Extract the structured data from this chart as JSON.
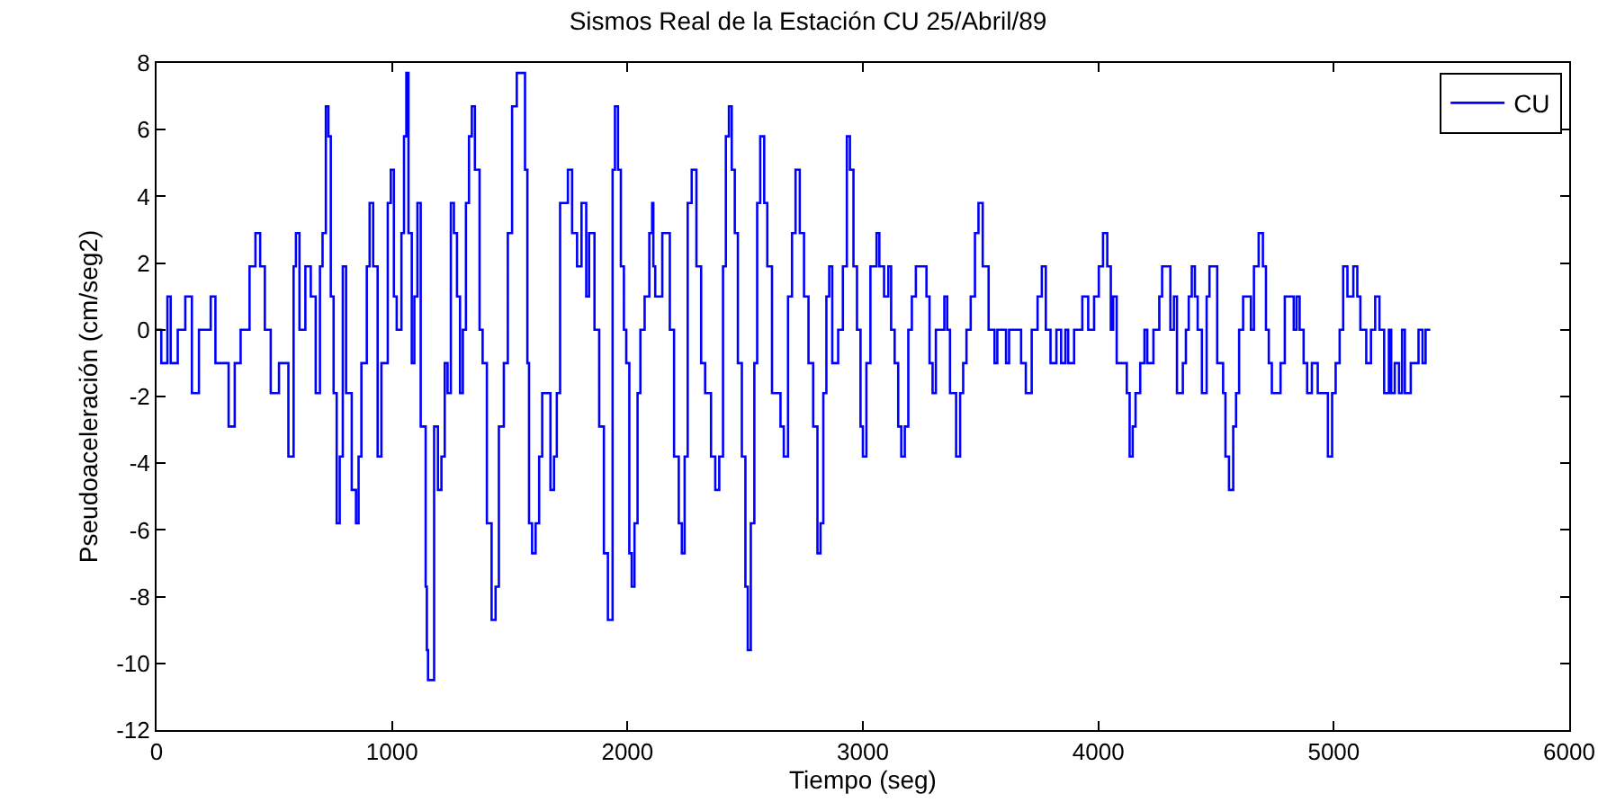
{
  "chart_data": {
    "type": "step",
    "title": "Sismos Real de la Estación CU 25/Abril/89",
    "xlabel": "Tiempo (seg)",
    "ylabel": "Pseudoaceleración (cm/seg2)",
    "xlim": [
      0,
      6000
    ],
    "xticks": [
      0,
      1000,
      2000,
      3000,
      4000,
      5000,
      6000
    ],
    "ylim": [
      -12,
      8
    ],
    "yticks": [
      -12,
      -10,
      -8,
      -6,
      -4,
      -2,
      0,
      2,
      4,
      6,
      8
    ],
    "grid": false,
    "legend": "top right",
    "series": [
      {
        "name": "CU",
        "color": "#0000ff",
        "x": [
          0,
          20,
          46,
          60,
          90,
          122,
          150,
          180,
          230,
          250,
          306,
          332,
          357,
          395,
          420,
          440,
          460,
          485,
          520,
          560,
          582,
          592,
          607,
          632,
          655,
          676,
          694,
          705,
          719,
          730,
          740,
          752,
          765,
          778,
          791,
          805,
          829,
          847,
          858,
          870,
          893,
          905,
          920,
          939,
          955,
          970,
          982,
          995,
          1008,
          1020,
          1040,
          1051,
          1061,
          1070,
          1084,
          1095,
          1108,
          1122,
          1143,
          1148,
          1153,
          1179,
          1195,
          1210,
          1224,
          1236,
          1250,
          1263,
          1276,
          1289,
          1301,
          1314,
          1327,
          1339,
          1352,
          1372,
          1385,
          1403,
          1423,
          1440,
          1454,
          1475,
          1492,
          1510,
          1530,
          1551,
          1565,
          1575,
          1582,
          1595,
          1610,
          1625,
          1638,
          1660,
          1673,
          1688,
          1700,
          1714,
          1747,
          1765,
          1786,
          1805,
          1825,
          1837,
          1860,
          1880,
          1900,
          1917,
          1937,
          1947,
          1960,
          1972,
          1985,
          1995,
          2008,
          2018,
          2030,
          2043,
          2055,
          2073,
          2093,
          2105,
          2110,
          2118,
          2148,
          2170,
          2180,
          2198,
          2218,
          2231,
          2243,
          2256,
          2273,
          2293,
          2313,
          2330,
          2355,
          2373,
          2390,
          2406,
          2418,
          2431,
          2443,
          2456,
          2469,
          2486,
          2501,
          2511,
          2524,
          2539,
          2551,
          2564,
          2581,
          2594,
          2614,
          2650,
          2664,
          2682,
          2699,
          2714,
          2732,
          2750,
          2769,
          2789,
          2807,
          2820,
          2832,
          2845,
          2857,
          2870,
          2895,
          2915,
          2932,
          2945,
          2960,
          2975,
          2990,
          3000,
          3015,
          3032,
          3058,
          3070,
          3090,
          3108,
          3120,
          3135,
          3150,
          3163,
          3178,
          3193,
          3208,
          3225,
          3260,
          3270,
          3283,
          3296,
          3310,
          3346,
          3358,
          3370,
          3396,
          3413,
          3426,
          3440,
          3458,
          3476,
          3491,
          3509,
          3534,
          3559,
          3571,
          3608,
          3621,
          3645,
          3672,
          3692,
          3717,
          3742,
          3760,
          3777,
          3797,
          3822,
          3842,
          3860,
          3872,
          3897,
          3932,
          3957,
          3982,
          4002,
          4020,
          4038,
          4053,
          4063,
          4078,
          4121,
          4133,
          4146,
          4158,
          4178,
          4196,
          4208,
          4234,
          4259,
          4271,
          4289,
          4306,
          4321,
          4334,
          4359,
          4372,
          4384,
          4397,
          4410,
          4422,
          4440,
          4460,
          4472,
          4490,
          4505,
          4530,
          4540,
          4555,
          4573,
          4585,
          4598,
          4615,
          4648,
          4661,
          4681,
          4699,
          4712,
          4724,
          4737,
          4774,
          4792,
          4807,
          4830,
          4842,
          4855,
          4872,
          4887,
          4907,
          4932,
          4957,
          4975,
          4993,
          5008,
          5025,
          5040,
          5058,
          5083,
          5100,
          5113,
          5138,
          5158,
          5176,
          5194,
          5214,
          5234,
          5244,
          5259,
          5277,
          5290,
          5302,
          5327,
          5340,
          5360,
          5377,
          5390,
          5410
        ],
        "values": [
          0,
          -1,
          1,
          -1,
          0,
          1,
          -1.9,
          0,
          1,
          -1,
          -2.9,
          -1,
          0,
          1.9,
          2.9,
          1.9,
          0,
          -1.9,
          -1,
          -3.8,
          1.9,
          2.9,
          0,
          1.9,
          1,
          -1.9,
          1.9,
          2.9,
          6.7,
          5.8,
          1,
          -1.9,
          -5.8,
          -3.8,
          1.9,
          -1.9,
          -4.8,
          -5.8,
          -3.8,
          -1,
          1.9,
          3.8,
          1.9,
          -3.8,
          -1,
          -1,
          3.8,
          4.8,
          1,
          0,
          2.9,
          5.8,
          7.7,
          2.9,
          -1,
          1,
          3.8,
          -2.9,
          -7.7,
          -9.6,
          -10.5,
          -2.9,
          -4.8,
          -3.8,
          -1,
          -1.9,
          3.8,
          2.9,
          1,
          -1.9,
          0,
          3.8,
          5.8,
          6.7,
          4.8,
          0,
          -1,
          -5.8,
          -8.7,
          -7.7,
          -2.9,
          -1,
          2.9,
          6.7,
          7.7,
          7.7,
          4.8,
          -1,
          -5.8,
          -6.7,
          -5.8,
          -3.8,
          -1.9,
          -1.9,
          -4.8,
          -3.8,
          -1.9,
          3.8,
          4.8,
          2.9,
          1.9,
          3.8,
          1,
          2.9,
          0,
          -2.9,
          -6.7,
          -8.7,
          4.8,
          6.7,
          4.8,
          1.9,
          0,
          -1,
          -6.7,
          -7.7,
          -5.8,
          -1.9,
          0,
          1,
          2.9,
          3.8,
          1.9,
          1,
          2.9,
          2.9,
          0,
          -3.8,
          -5.8,
          -6.7,
          -3.8,
          3.8,
          4.8,
          1.9,
          -1,
          -1.9,
          -3.8,
          -4.8,
          -3.8,
          1.9,
          5.8,
          6.7,
          4.8,
          2.9,
          -1,
          -3.8,
          -7.7,
          -9.6,
          -5.8,
          -1,
          3.8,
          5.8,
          3.8,
          1.9,
          -1.9,
          -2.9,
          -3.8,
          1,
          2.9,
          4.8,
          2.9,
          1,
          -1,
          -2.9,
          -6.7,
          -5.8,
          -1.9,
          1,
          1.9,
          -1,
          0,
          1.9,
          5.8,
          4.8,
          1.9,
          0,
          -2.9,
          -3.8,
          -1,
          1.9,
          2.9,
          1.9,
          1,
          1.9,
          0,
          -1,
          -2.9,
          -3.8,
          -2.9,
          0,
          1,
          1.9,
          1.9,
          1,
          -1,
          -1.9,
          0,
          1,
          0,
          -1.9,
          -3.8,
          -1.9,
          -1,
          0,
          1,
          2.9,
          3.8,
          1.9,
          0,
          -1,
          0,
          -1,
          0,
          0,
          -1,
          -1.9,
          0,
          1,
          1.9,
          0,
          -1,
          0,
          -1,
          0,
          -1,
          0,
          1,
          0,
          1,
          1.9,
          2.9,
          1.9,
          0,
          1,
          -1,
          -1.9,
          -3.8,
          -2.9,
          -1.9,
          -1,
          0,
          -1,
          0,
          1,
          1.9,
          1.9,
          0,
          1,
          -1.9,
          -1,
          0,
          1,
          1.9,
          1,
          0,
          -1.9,
          1,
          1.9,
          1.9,
          -1,
          -1.9,
          -3.8,
          -4.8,
          -2.9,
          -1.9,
          0,
          1,
          0,
          1.9,
          2.9,
          1.9,
          0,
          -1,
          -1.9,
          -1,
          1,
          1,
          0,
          1,
          0,
          -1,
          -1.9,
          -1,
          -1.9,
          -1.9,
          -3.8,
          -1.9,
          -1,
          0,
          1.9,
          1,
          1.9,
          1,
          0,
          -1,
          0,
          1,
          0,
          -1.9,
          0,
          -1.9,
          -1,
          -1.9,
          0,
          -1.9,
          -1,
          -1,
          0,
          -1,
          0,
          0
        ]
      }
    ]
  }
}
